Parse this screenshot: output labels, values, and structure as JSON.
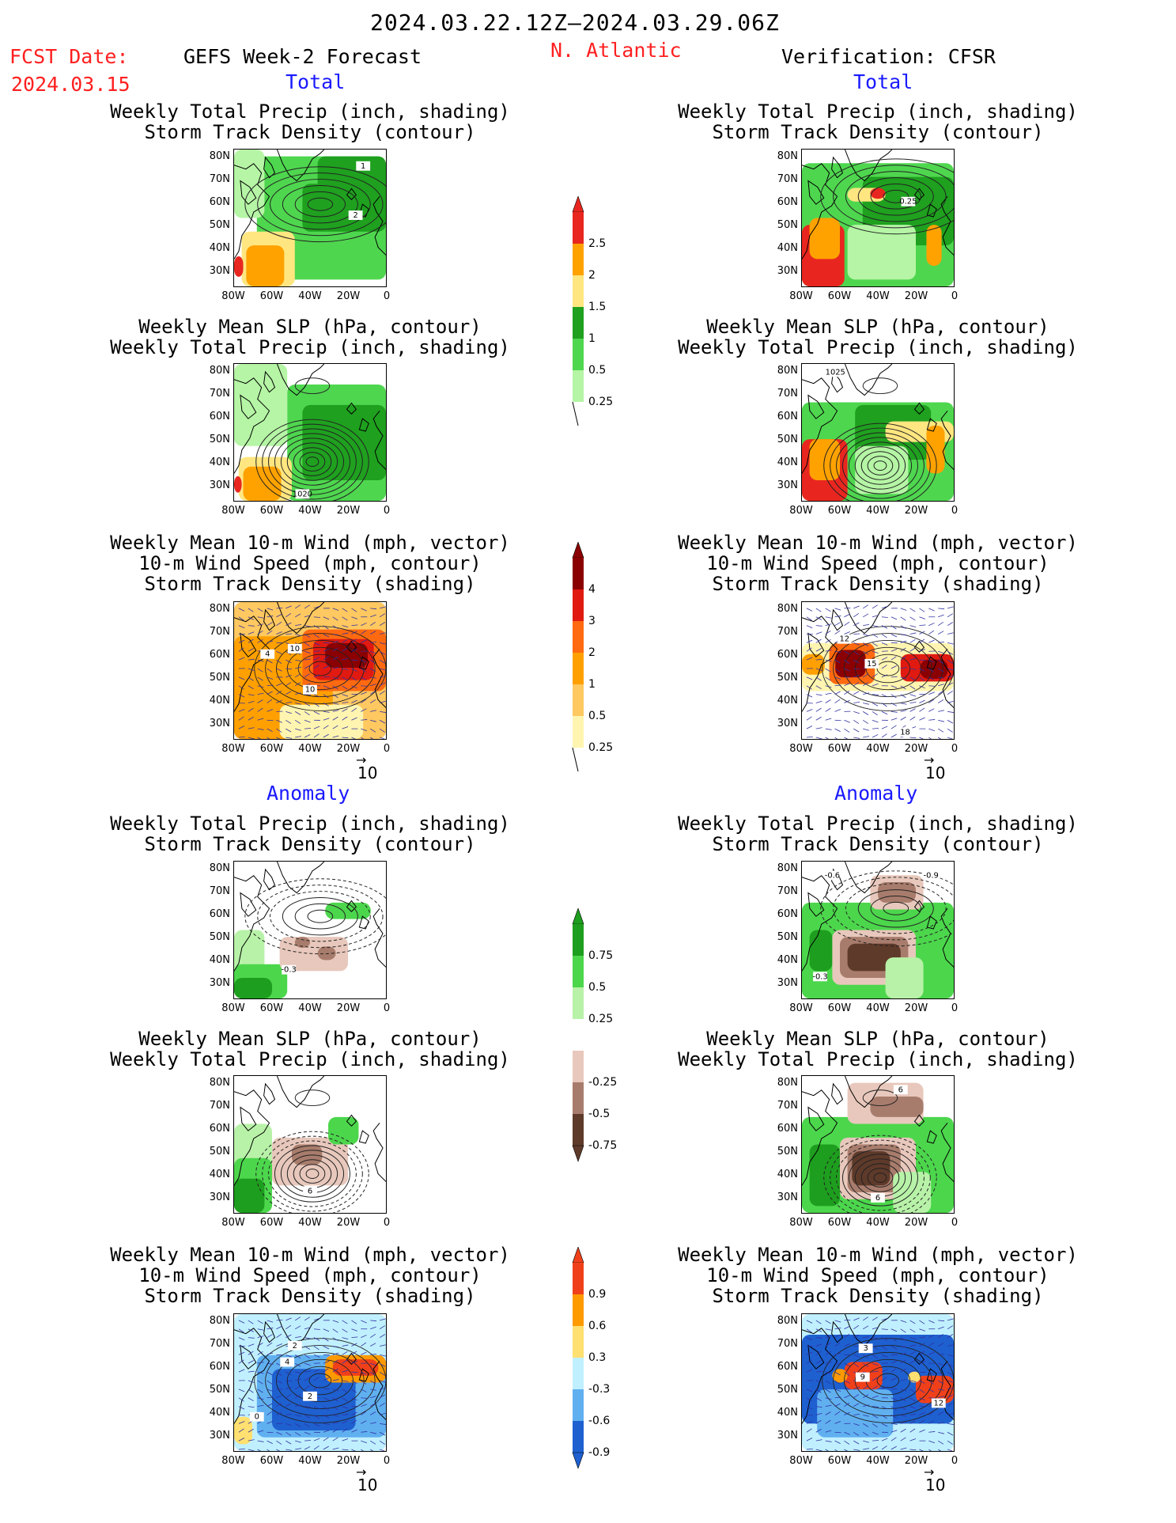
{
  "header": {
    "period": "2024.03.22.12Z–2024.03.29.06Z",
    "fcst_label": "FCST Date:",
    "fcst_date": "2024.03.15",
    "forecast_title": "GEFS Week-2 Forecast",
    "region": "N. Atlantic",
    "verification": "Verification: CFSR"
  },
  "sections": {
    "total": "Total",
    "anomaly": "Anomaly"
  },
  "titles": {
    "precip_track": [
      "Weekly Total Precip (inch, shading)",
      "Storm Track Density (contour)"
    ],
    "slp_precip": [
      "Weekly Mean SLP (hPa, contour)",
      "Weekly Total Precip (inch, shading)"
    ],
    "wind_track": [
      "Weekly Mean 10-m Wind (mph, vector)",
      "10-m Wind Speed (mph, contour)",
      "Storm Track Density (shading)"
    ]
  },
  "axes": {
    "lat_labels": [
      "80N",
      "70N",
      "60N",
      "50N",
      "40N",
      "30N"
    ],
    "lon_labels": [
      "80W",
      "60W",
      "40W",
      "20W",
      "0"
    ]
  },
  "vector_ref": "10",
  "colorbars": {
    "precip_total": {
      "labels": [
        "2.5",
        "2",
        "1.5",
        "1",
        "0.5",
        "0.25"
      ],
      "colors": [
        "#e8261f",
        "#ffa200",
        "#ffe680",
        "#1fa01f",
        "#4fd64f",
        "#b5f5a5"
      ]
    },
    "track_total": {
      "labels": [
        "4",
        "3",
        "2",
        "1",
        "0.5",
        "0.25"
      ],
      "colors": [
        "#8b0000",
        "#e01a10",
        "#ff6a10",
        "#ffa000",
        "#ffc860",
        "#fff5b0"
      ]
    },
    "precip_anom": {
      "labels": [
        "0.75",
        "0.5",
        "0.25",
        "-0.25",
        "-0.5",
        "-0.75"
      ],
      "colors": [
        "#1e9e1e",
        "#4cd64c",
        "#b8f2a8",
        "#e8c8bc",
        "#a87c6c",
        "#5e3a2a"
      ]
    },
    "track_anom": {
      "labels": [
        "0.9",
        "0.6",
        "0.3",
        "-0.3",
        "-0.6",
        "-0.9"
      ],
      "colors": [
        "#f0401a",
        "#ff9a00",
        "#ffe070",
        "#c0f0ff",
        "#60b0f0",
        "#1e60d0"
      ]
    }
  },
  "maps": {
    "f_precip": {
      "labels": [
        "1",
        "2"
      ]
    },
    "v_precip": {
      "labels": [
        "0.25"
      ]
    },
    "f_slp": {
      "labels": [
        "1020"
      ]
    },
    "v_slp": {
      "labels": [
        "1025"
      ]
    },
    "f_wind": {
      "labels": [
        "4",
        "10",
        "10"
      ]
    },
    "v_wind": {
      "labels": [
        "12",
        "15",
        "18"
      ]
    },
    "fa_precip": {
      "labels": [
        "-0.3"
      ]
    },
    "va_precip": {
      "labels": [
        "-0.6",
        "-0.9",
        "-0.3"
      ]
    },
    "fa_slp": {
      "labels": [
        "6"
      ]
    },
    "va_slp": {
      "labels": [
        "6",
        "6"
      ]
    },
    "fa_wind": {
      "labels": [
        "2",
        "4",
        "2",
        "0"
      ]
    },
    "va_wind": {
      "labels": [
        "3",
        "9",
        "12"
      ]
    }
  }
}
